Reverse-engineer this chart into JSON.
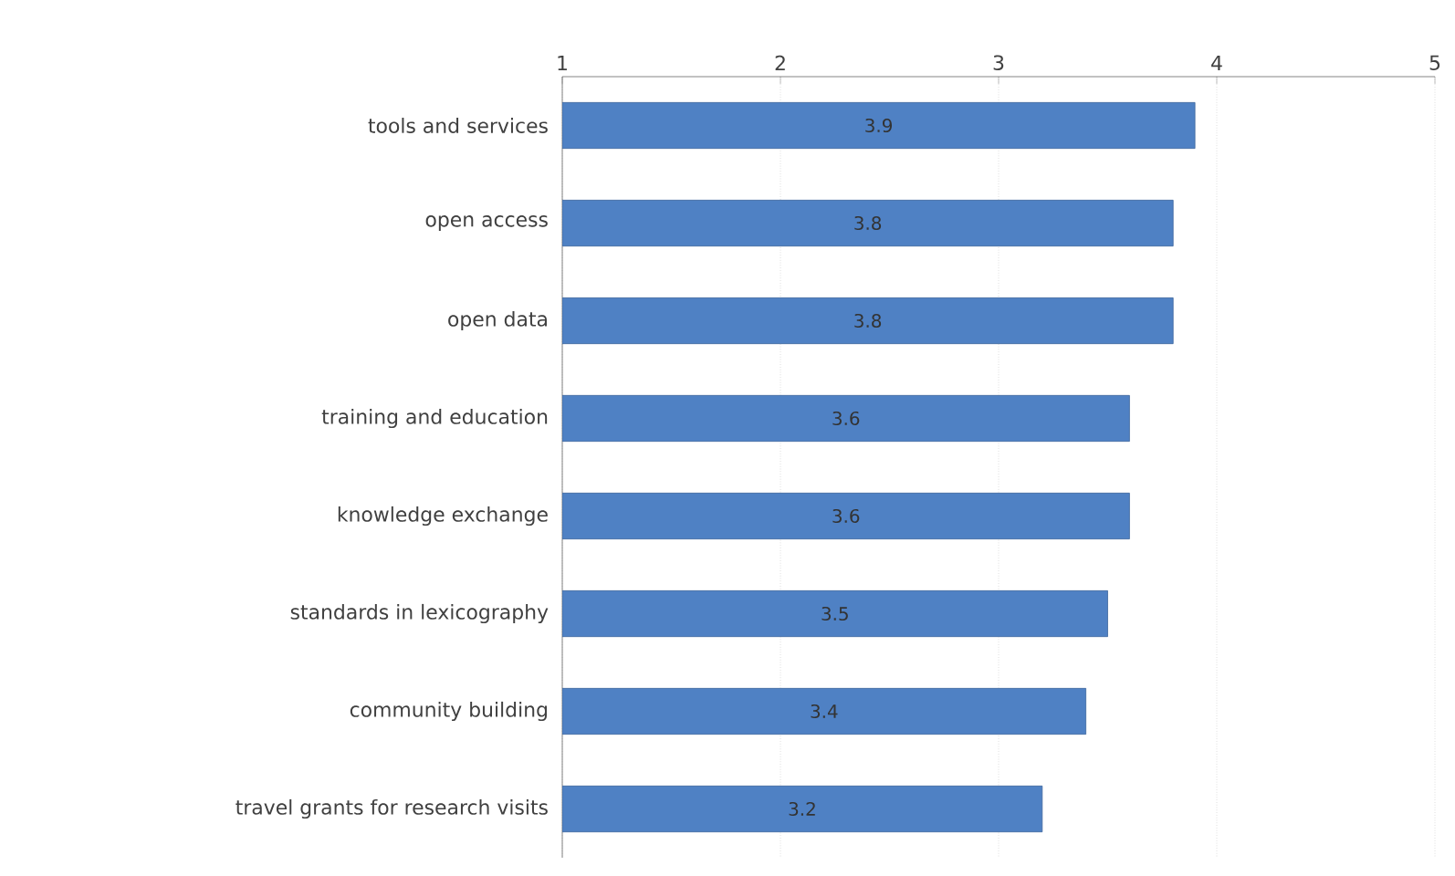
{
  "chart_data": {
    "type": "bar",
    "orientation": "horizontal",
    "categories": [
      "tools and services",
      "open access",
      "open data",
      "training and education",
      "knowledge exchange",
      "standards in lexicography",
      "community building",
      "travel grants for research visits"
    ],
    "values": [
      3.9,
      3.8,
      3.8,
      3.6,
      3.6,
      3.5,
      3.4,
      3.2
    ],
    "color": "#4f81c4",
    "xlim": [
      1,
      5
    ],
    "xticks": [
      1,
      2,
      3,
      4,
      5
    ],
    "grid": "x",
    "data_labels": true
  }
}
